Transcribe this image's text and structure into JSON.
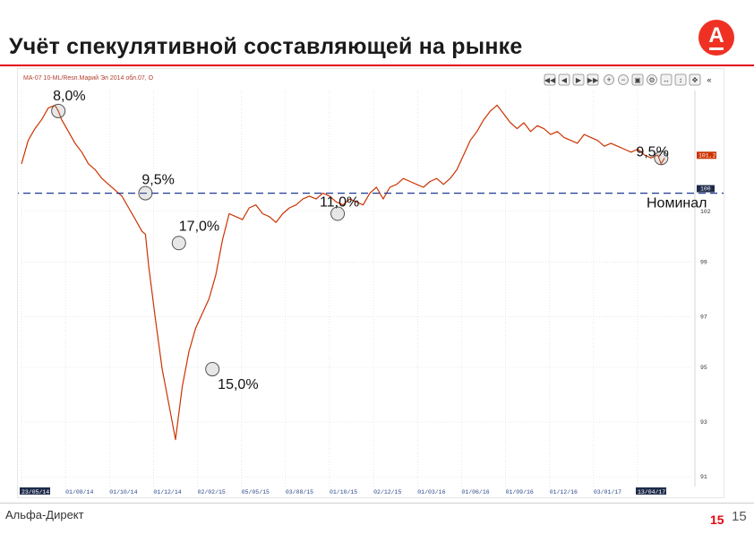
{
  "slide": {
    "title": "Учёт спекулятивной составляющей на рынке",
    "logo_letter": "А",
    "footer_brand": "Альфа-Директ",
    "page_number": "15",
    "page_number_secondary": "15"
  },
  "chart_data": {
    "type": "line",
    "title": "MA-07 10-ML/Resп.Марий Эл 2014 обл.07, О",
    "color_line": "#cc3300",
    "color_reference": "#1f3a93",
    "date_labels": [
      "23/05/14",
      "01/08/14",
      "01/10/14",
      "01/12/14",
      "02/02/15",
      "05/05/15",
      "03/08/15",
      "01/10/15",
      "02/12/15",
      "01/03/16",
      "01/06/16",
      "01/09/16",
      "01/12/16",
      "03/01/17",
      "13/04/17"
    ],
    "y_ticks": [
      "102",
      "99",
      "97",
      "95",
      "93",
      "91"
    ],
    "price_badge": "101,2",
    "nominal_badge": "100",
    "reference": {
      "label": "Номинал",
      "value": 100
    },
    "ylim": [
      90,
      103.5
    ],
    "x_range": [
      0,
      100
    ],
    "series": [
      {
        "x": [
          0,
          1,
          2,
          3,
          4,
          5,
          5.5,
          6,
          7,
          8,
          9,
          10,
          11,
          12,
          13,
          14,
          15,
          16,
          17,
          18,
          18.5,
          19,
          20,
          21,
          22,
          23,
          24,
          25,
          26,
          27,
          28,
          29,
          30,
          31,
          32,
          33,
          34,
          35,
          36,
          37,
          38,
          39,
          40,
          41,
          42,
          43,
          44,
          45,
          46,
          47,
          48,
          49,
          50,
          51,
          52,
          53,
          54,
          55,
          56,
          57,
          58,
          59,
          60,
          61,
          62,
          63,
          64,
          65,
          66,
          67,
          68,
          69,
          70,
          71,
          72,
          73,
          74,
          75,
          76,
          77,
          78,
          79,
          80,
          81,
          82,
          83,
          84,
          85,
          86,
          87,
          88,
          89,
          90,
          91,
          92,
          93,
          94,
          95,
          95.5,
          96
        ],
        "y": [
          101.0,
          101.8,
          102.2,
          102.5,
          102.9,
          103.0,
          102.8,
          102.5,
          102.1,
          101.7,
          101.4,
          101.0,
          100.8,
          100.5,
          100.3,
          100.1,
          99.9,
          99.5,
          99.1,
          98.7,
          98.6,
          97.5,
          95.7,
          94.0,
          92.8,
          91.6,
          93.4,
          94.6,
          95.4,
          95.9,
          96.4,
          97.2,
          98.4,
          99.3,
          99.2,
          99.1,
          99.5,
          99.6,
          99.3,
          99.2,
          99.0,
          99.3,
          99.5,
          99.6,
          99.8,
          99.9,
          99.8,
          100.0,
          99.9,
          99.7,
          99.6,
          99.8,
          99.7,
          99.6,
          100.0,
          100.2,
          99.8,
          100.2,
          100.3,
          100.5,
          100.4,
          100.3,
          100.2,
          100.4,
          100.5,
          100.3,
          100.5,
          100.8,
          101.3,
          101.8,
          102.1,
          102.5,
          102.8,
          103.0,
          102.7,
          102.4,
          102.2,
          102.4,
          102.1,
          102.3,
          102.2,
          102.0,
          102.1,
          101.9,
          101.8,
          101.7,
          102.0,
          101.9,
          101.8,
          101.6,
          101.7,
          101.6,
          101.5,
          101.4,
          101.5,
          101.3,
          101.2,
          101.3,
          101.0,
          101.2
        ]
      }
    ],
    "annotations": [
      {
        "label": "8,0%",
        "x": 5.5,
        "y": 102.8
      },
      {
        "label": "9,5%",
        "x": 18.5,
        "y": 100.0
      },
      {
        "label": "17,0%",
        "x": 23.5,
        "y": 98.3
      },
      {
        "label": "11,0%",
        "x": 47.2,
        "y": 99.3
      },
      {
        "label": "15,0%",
        "x": 28.5,
        "y": 94.0
      },
      {
        "label": "9,5%",
        "x": 95.5,
        "y": 101.2
      }
    ],
    "grid": true
  }
}
